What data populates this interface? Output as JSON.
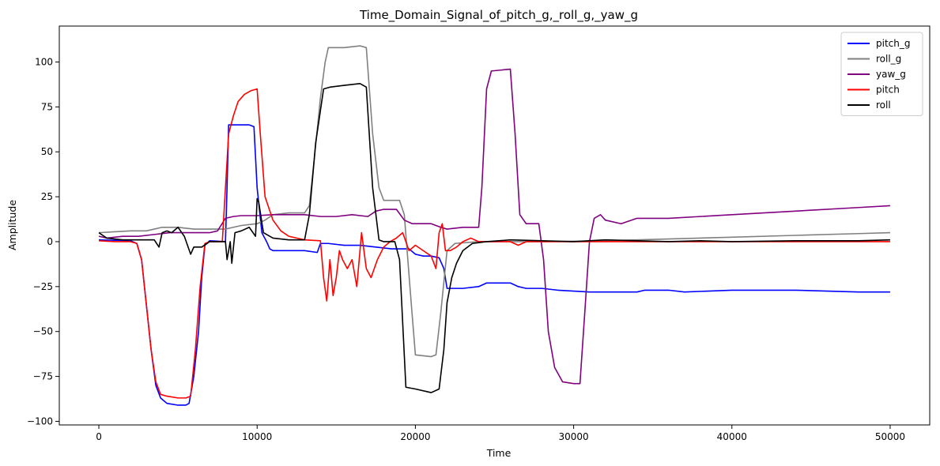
{
  "chart_data": {
    "type": "line",
    "title": "Time_Domain_Signal_of_pitch_g,_roll_g,_yaw_g",
    "xlabel": "Time",
    "ylabel": "Amplitude",
    "xlim": [
      -2500,
      52500
    ],
    "ylim": [
      -102,
      120
    ],
    "xticks": [
      0,
      10000,
      20000,
      30000,
      40000,
      50000
    ],
    "xtick_labels": [
      "0",
      "10000",
      "20000",
      "30000",
      "40000",
      "50000"
    ],
    "yticks": [
      -100,
      -75,
      -50,
      -25,
      0,
      25,
      50,
      75,
      100
    ],
    "ytick_labels": [
      "−100",
      "−75",
      "−50",
      "−25",
      "0",
      "25",
      "50",
      "75",
      "100"
    ],
    "grid": false,
    "legend_position": "top-right",
    "series": [
      {
        "name": "pitch_g",
        "color": "#0000ff",
        "points": [
          [
            0,
            1
          ],
          [
            2000,
            0.5
          ],
          [
            2400,
            -1
          ],
          [
            2700,
            -10
          ],
          [
            3000,
            -35
          ],
          [
            3300,
            -60
          ],
          [
            3600,
            -80
          ],
          [
            3900,
            -87
          ],
          [
            4300,
            -90
          ],
          [
            5000,
            -91
          ],
          [
            5500,
            -91
          ],
          [
            5700,
            -90
          ],
          [
            6000,
            -75
          ],
          [
            6300,
            -50
          ],
          [
            6500,
            -20
          ],
          [
            6700,
            -2
          ],
          [
            7000,
            0.5
          ],
          [
            8000,
            0
          ],
          [
            8100,
            30
          ],
          [
            8200,
            65
          ],
          [
            8500,
            65
          ],
          [
            9000,
            65
          ],
          [
            9500,
            65
          ],
          [
            9800,
            64
          ],
          [
            10000,
            30
          ],
          [
            10300,
            5
          ],
          [
            10600,
            0
          ],
          [
            10800,
            -4
          ],
          [
            11000,
            -5
          ],
          [
            12000,
            -5
          ],
          [
            13000,
            -5
          ],
          [
            13800,
            -6
          ],
          [
            14000,
            -1
          ],
          [
            14500,
            -1
          ],
          [
            15500,
            -2
          ],
          [
            16500,
            -2
          ],
          [
            17500,
            -3
          ],
          [
            18500,
            -4
          ],
          [
            19000,
            -4
          ],
          [
            19600,
            -4
          ],
          [
            20000,
            -7
          ],
          [
            20500,
            -8
          ],
          [
            21000,
            -8
          ],
          [
            21500,
            -9
          ],
          [
            21800,
            -15
          ],
          [
            22000,
            -26
          ],
          [
            23000,
            -26
          ],
          [
            24000,
            -25
          ],
          [
            24500,
            -23
          ],
          [
            26000,
            -23
          ],
          [
            26500,
            -25
          ],
          [
            27000,
            -26
          ],
          [
            28000,
            -26
          ],
          [
            29000,
            -27
          ],
          [
            31000,
            -28
          ],
          [
            34000,
            -28
          ],
          [
            34500,
            -27
          ],
          [
            36000,
            -27
          ],
          [
            37000,
            -28
          ],
          [
            40000,
            -27
          ],
          [
            44000,
            -27
          ],
          [
            48000,
            -28
          ],
          [
            50000,
            -28
          ]
        ]
      },
      {
        "name": "roll_g",
        "color": "#808080",
        "points": [
          [
            0,
            5
          ],
          [
            1000,
            5.5
          ],
          [
            2000,
            6
          ],
          [
            3000,
            6
          ],
          [
            3500,
            7
          ],
          [
            4000,
            8
          ],
          [
            5000,
            8
          ],
          [
            6000,
            7
          ],
          [
            7000,
            7
          ],
          [
            8000,
            7
          ],
          [
            8500,
            8
          ],
          [
            9000,
            9
          ],
          [
            10000,
            10
          ],
          [
            10500,
            12
          ],
          [
            11000,
            15
          ],
          [
            12000,
            16
          ],
          [
            13000,
            16
          ],
          [
            13300,
            20
          ],
          [
            13600,
            45
          ],
          [
            14000,
            80
          ],
          [
            14300,
            100
          ],
          [
            14500,
            108
          ],
          [
            15500,
            108
          ],
          [
            16500,
            109
          ],
          [
            16900,
            108
          ],
          [
            17300,
            60
          ],
          [
            17700,
            30
          ],
          [
            18000,
            23
          ],
          [
            19000,
            23
          ],
          [
            19300,
            15
          ],
          [
            19700,
            -30
          ],
          [
            20000,
            -63
          ],
          [
            21000,
            -64
          ],
          [
            21300,
            -63
          ],
          [
            21600,
            -40
          ],
          [
            22000,
            -5
          ],
          [
            22500,
            -1
          ],
          [
            24000,
            0
          ],
          [
            28000,
            0
          ],
          [
            32000,
            0.5
          ],
          [
            36000,
            1.5
          ],
          [
            40000,
            2.5
          ],
          [
            44000,
            3.5
          ],
          [
            48000,
            4.5
          ],
          [
            50000,
            5
          ]
        ]
      },
      {
        "name": "yaw_g",
        "color": "#800080",
        "points": [
          [
            0,
            3
          ],
          [
            500,
            2
          ],
          [
            1500,
            3
          ],
          [
            2500,
            3
          ],
          [
            3500,
            4
          ],
          [
            4500,
            5
          ],
          [
            5500,
            5
          ],
          [
            6000,
            5
          ],
          [
            7000,
            5
          ],
          [
            7500,
            6
          ],
          [
            8000,
            13
          ],
          [
            8500,
            14
          ],
          [
            9000,
            14.5
          ],
          [
            10000,
            14.5
          ],
          [
            11000,
            15
          ],
          [
            12000,
            15
          ],
          [
            13000,
            15
          ],
          [
            14000,
            14
          ],
          [
            15000,
            14
          ],
          [
            16000,
            15
          ],
          [
            17000,
            14
          ],
          [
            17500,
            17
          ],
          [
            18000,
            18
          ],
          [
            18800,
            18
          ],
          [
            19300,
            12
          ],
          [
            19800,
            10
          ],
          [
            20500,
            10
          ],
          [
            21000,
            10
          ],
          [
            21600,
            8
          ],
          [
            22000,
            7
          ],
          [
            23000,
            8
          ],
          [
            23500,
            8
          ],
          [
            24000,
            8
          ],
          [
            24200,
            30
          ],
          [
            24500,
            85
          ],
          [
            24800,
            95
          ],
          [
            26000,
            96
          ],
          [
            26300,
            60
          ],
          [
            26600,
            15
          ],
          [
            27000,
            10
          ],
          [
            27800,
            10
          ],
          [
            28100,
            -10
          ],
          [
            28400,
            -50
          ],
          [
            28800,
            -70
          ],
          [
            29300,
            -78
          ],
          [
            30000,
            -79
          ],
          [
            30400,
            -79
          ],
          [
            30700,
            -40
          ],
          [
            31000,
            0
          ],
          [
            31300,
            13
          ],
          [
            31700,
            15
          ],
          [
            32000,
            12
          ],
          [
            33000,
            10
          ],
          [
            34000,
            13
          ],
          [
            36000,
            13
          ],
          [
            40000,
            15
          ],
          [
            44000,
            17
          ],
          [
            48000,
            19
          ],
          [
            50000,
            20
          ]
        ]
      },
      {
        "name": "pitch",
        "color": "#ff0000",
        "points": [
          [
            0,
            0.5
          ],
          [
            1000,
            0
          ],
          [
            2000,
            0
          ],
          [
            2400,
            -1
          ],
          [
            2700,
            -10
          ],
          [
            3000,
            -35
          ],
          [
            3300,
            -60
          ],
          [
            3600,
            -78
          ],
          [
            3900,
            -85
          ],
          [
            4300,
            -86
          ],
          [
            5000,
            -87
          ],
          [
            5500,
            -87
          ],
          [
            5800,
            -86
          ],
          [
            6100,
            -60
          ],
          [
            6400,
            -25
          ],
          [
            6700,
            -1
          ],
          [
            7000,
            0
          ],
          [
            7800,
            0
          ],
          [
            8000,
            30
          ],
          [
            8200,
            60
          ],
          [
            8500,
            70
          ],
          [
            8800,
            78
          ],
          [
            9200,
            82
          ],
          [
            9600,
            84
          ],
          [
            10000,
            85
          ],
          [
            10200,
            60
          ],
          [
            10500,
            25
          ],
          [
            11000,
            12
          ],
          [
            11500,
            6
          ],
          [
            12000,
            3
          ],
          [
            13000,
            1
          ],
          [
            14000,
            0.5
          ],
          [
            14200,
            -20
          ],
          [
            14400,
            -33
          ],
          [
            14600,
            -10
          ],
          [
            14800,
            -30
          ],
          [
            15000,
            -20
          ],
          [
            15200,
            -5
          ],
          [
            15400,
            -10
          ],
          [
            15700,
            -15
          ],
          [
            16000,
            -10
          ],
          [
            16300,
            -25
          ],
          [
            16600,
            5
          ],
          [
            16900,
            -15
          ],
          [
            17200,
            -20
          ],
          [
            17600,
            -10
          ],
          [
            18000,
            -3
          ],
          [
            18400,
            0
          ],
          [
            18800,
            2
          ],
          [
            19200,
            5
          ],
          [
            19600,
            -5
          ],
          [
            20000,
            -2
          ],
          [
            20500,
            -5
          ],
          [
            21000,
            -8
          ],
          [
            21300,
            -15
          ],
          [
            21500,
            5
          ],
          [
            21700,
            10
          ],
          [
            21900,
            -5
          ],
          [
            22200,
            -5
          ],
          [
            22600,
            -3
          ],
          [
            23000,
            0
          ],
          [
            23500,
            2
          ],
          [
            24000,
            0
          ],
          [
            25000,
            0
          ],
          [
            26000,
            0
          ],
          [
            26500,
            -2
          ],
          [
            27000,
            0
          ],
          [
            28000,
            0
          ],
          [
            30000,
            0
          ],
          [
            35000,
            0
          ],
          [
            40000,
            0
          ],
          [
            45000,
            0
          ],
          [
            50000,
            0
          ]
        ]
      },
      {
        "name": "roll",
        "color": "#000000",
        "points": [
          [
            0,
            5
          ],
          [
            500,
            2
          ],
          [
            1500,
            1
          ],
          [
            2500,
            1
          ],
          [
            3500,
            1
          ],
          [
            3800,
            -3
          ],
          [
            4000,
            5
          ],
          [
            4300,
            6
          ],
          [
            4600,
            5
          ],
          [
            5000,
            8
          ],
          [
            5400,
            3
          ],
          [
            5800,
            -7
          ],
          [
            6000,
            -3
          ],
          [
            6500,
            -3
          ],
          [
            7000,
            0
          ],
          [
            8000,
            0
          ],
          [
            8100,
            -10
          ],
          [
            8300,
            0
          ],
          [
            8400,
            -12
          ],
          [
            8600,
            5
          ],
          [
            9000,
            6
          ],
          [
            9500,
            8
          ],
          [
            9900,
            3
          ],
          [
            10000,
            24
          ],
          [
            10100,
            22
          ],
          [
            10400,
            5
          ],
          [
            11000,
            2
          ],
          [
            12000,
            1
          ],
          [
            13000,
            1
          ],
          [
            13300,
            15
          ],
          [
            13700,
            55
          ],
          [
            14200,
            85
          ],
          [
            14600,
            86
          ],
          [
            15500,
            87
          ],
          [
            16500,
            88
          ],
          [
            16900,
            86
          ],
          [
            17300,
            30
          ],
          [
            17700,
            1
          ],
          [
            18000,
            0
          ],
          [
            18700,
            0
          ],
          [
            19000,
            -10
          ],
          [
            19400,
            -81
          ],
          [
            20000,
            -82
          ],
          [
            21000,
            -84
          ],
          [
            21500,
            -82
          ],
          [
            21800,
            -60
          ],
          [
            22000,
            -34
          ],
          [
            22300,
            -20
          ],
          [
            22600,
            -12
          ],
          [
            23000,
            -5
          ],
          [
            23600,
            -1
          ],
          [
            24500,
            0
          ],
          [
            26000,
            1
          ],
          [
            28000,
            0.5
          ],
          [
            30000,
            0
          ],
          [
            32000,
            1
          ],
          [
            34000,
            0.5
          ],
          [
            36000,
            0
          ],
          [
            38000,
            0.5
          ],
          [
            40000,
            0
          ],
          [
            44000,
            0.5
          ],
          [
            48000,
            0.5
          ],
          [
            50000,
            1
          ]
        ]
      }
    ]
  }
}
